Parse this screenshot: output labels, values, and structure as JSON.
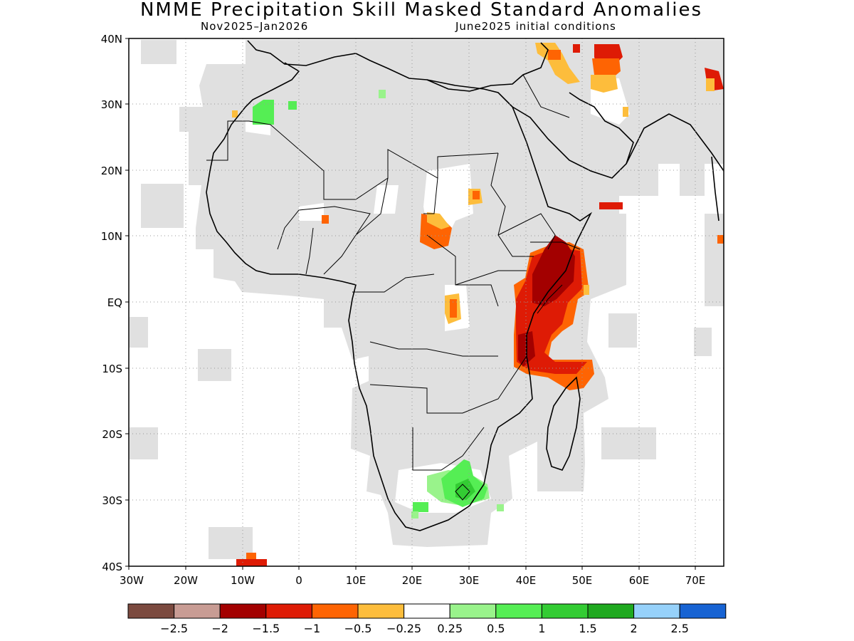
{
  "title": "NMME Precipitation Skill Masked Standard Anomalies",
  "subtitle_left": "Nov2025–Jan2026",
  "subtitle_right": "June2025 initial conditions",
  "y_ticks": [
    "40N",
    "30N",
    "20N",
    "10N",
    "EQ",
    "10S",
    "20S",
    "30S",
    "40S"
  ],
  "x_ticks": [
    "30W",
    "20W",
    "10W",
    "0",
    "10E",
    "20E",
    "30E",
    "40E",
    "50E",
    "60E",
    "70E"
  ],
  "colorbar": {
    "colors": [
      "#7b4a3f",
      "#c89c94",
      "#a30000",
      "#de1b05",
      "#fe6403",
      "#fdbd3c",
      "#ffffff",
      "#99f38b",
      "#55ee54",
      "#33cc33",
      "#1fa91f",
      "#96d1fa",
      "#1763d3"
    ],
    "labels": [
      "-2.5",
      "-2",
      "-1.5",
      "-1",
      "-0.5",
      "-0.25",
      "0.25",
      "0.5",
      "1",
      "1.5",
      "2",
      "2.5"
    ]
  },
  "colors": {
    "land_mask": "#e0e0e0",
    "coast": "#000000",
    "grid": "#999999"
  }
}
